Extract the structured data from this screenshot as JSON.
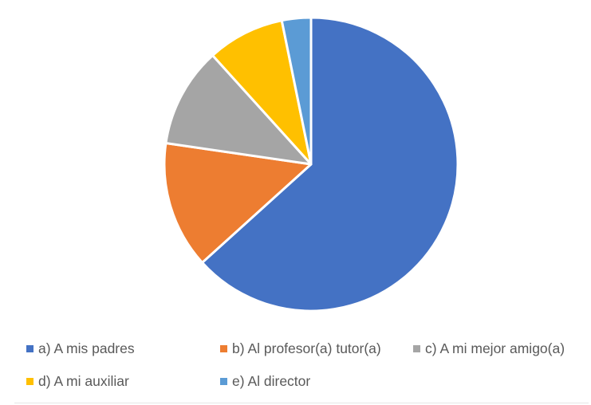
{
  "chart_data": {
    "type": "pie",
    "title": "",
    "slices": [
      {
        "label": "a) A mis padres",
        "value": 63.3,
        "color": "#4472C4"
      },
      {
        "label": "b) Al profesor(a)  tutor(a)",
        "value": 14.0,
        "color": "#ED7D31"
      },
      {
        "label": "c) A mi mejor amigo(a)",
        "value": 11.0,
        "color": "#A5A5A5"
      },
      {
        "label": "d) A mi auxiliar",
        "value": 8.5,
        "color": "#FFC000"
      },
      {
        "label": "e) Al director",
        "value": 3.2,
        "color": "#5B9BD5"
      }
    ],
    "legend_position": "bottom"
  }
}
